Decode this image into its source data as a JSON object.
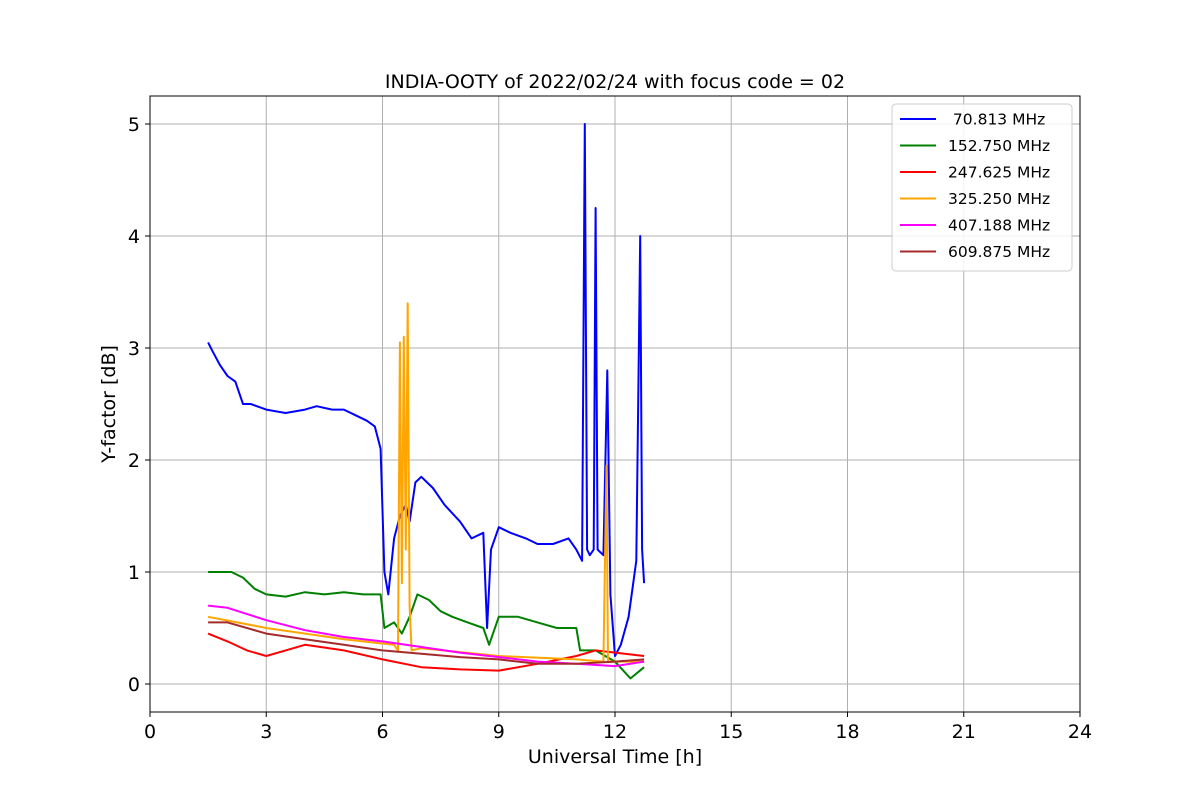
{
  "chart_data": {
    "type": "line",
    "title": "INDIA-OOTY of 2022/02/24 with focus code = 02",
    "xlabel": "Universal Time [h]",
    "ylabel": "Y-factor [dB]",
    "xlim": [
      0,
      24
    ],
    "ylim": [
      -0.25,
      5.25
    ],
    "xticks": [
      0,
      3,
      6,
      9,
      12,
      15,
      18,
      21,
      24
    ],
    "xtick_labels": [
      "0",
      "3",
      "6",
      "9",
      "12",
      "15",
      "18",
      "21",
      "24"
    ],
    "yticks": [
      0,
      1,
      2,
      3,
      4,
      5
    ],
    "ytick_labels": [
      "0",
      "1",
      "2",
      "3",
      "4",
      "5"
    ],
    "grid": true,
    "legend_position": "top-right",
    "series": [
      {
        "name": " 70.813 MHz",
        "color": "#0000ff",
        "x": [
          1.5,
          1.6,
          1.8,
          2.0,
          2.2,
          2.4,
          2.6,
          3.0,
          3.5,
          4.0,
          4.3,
          4.7,
          5.0,
          5.3,
          5.6,
          5.8,
          5.95,
          6.05,
          6.15,
          6.3,
          6.45,
          6.6,
          6.7,
          6.85,
          7.0,
          7.3,
          7.6,
          8.0,
          8.3,
          8.6,
          8.7,
          8.8,
          9.0,
          9.3,
          9.7,
          10.0,
          10.4,
          10.8,
          11.0,
          11.15,
          11.22,
          11.28,
          11.35,
          11.45,
          11.5,
          11.55,
          11.7,
          11.8,
          11.88,
          12.0,
          12.15,
          12.35,
          12.55,
          12.65,
          12.7,
          12.75
        ],
        "y": [
          3.05,
          2.98,
          2.85,
          2.75,
          2.7,
          2.5,
          2.5,
          2.45,
          2.42,
          2.45,
          2.48,
          2.45,
          2.45,
          2.4,
          2.35,
          2.3,
          2.1,
          1.0,
          0.8,
          1.3,
          1.5,
          1.6,
          1.45,
          1.8,
          1.85,
          1.75,
          1.6,
          1.45,
          1.3,
          1.35,
          0.5,
          1.2,
          1.4,
          1.35,
          1.3,
          1.25,
          1.25,
          1.3,
          1.2,
          1.1,
          5.0,
          1.2,
          1.15,
          1.2,
          4.25,
          1.2,
          1.15,
          2.8,
          0.8,
          0.25,
          0.35,
          0.6,
          1.1,
          4.0,
          1.2,
          0.9
        ]
      },
      {
        "name": "152.750 MHz",
        "color": "#008000",
        "x": [
          1.5,
          1.8,
          2.1,
          2.4,
          2.7,
          3.0,
          3.5,
          4.0,
          4.5,
          5.0,
          5.5,
          5.95,
          6.05,
          6.3,
          6.5,
          6.7,
          6.9,
          7.2,
          7.5,
          7.8,
          8.2,
          8.6,
          8.75,
          9.0,
          9.5,
          10.0,
          10.5,
          11.0,
          11.1,
          11.5,
          12.0,
          12.4,
          12.75
        ],
        "y": [
          1.0,
          1.0,
          1.0,
          0.95,
          0.85,
          0.8,
          0.78,
          0.82,
          0.8,
          0.82,
          0.8,
          0.8,
          0.5,
          0.55,
          0.45,
          0.6,
          0.8,
          0.75,
          0.65,
          0.6,
          0.55,
          0.5,
          0.35,
          0.6,
          0.6,
          0.55,
          0.5,
          0.5,
          0.3,
          0.3,
          0.2,
          0.05,
          0.15
        ]
      },
      {
        "name": "247.625 MHz",
        "color": "#ff0000",
        "x": [
          1.5,
          2.0,
          2.5,
          3.0,
          3.5,
          4.0,
          5.0,
          6.0,
          7.0,
          8.0,
          9.0,
          10.0,
          11.0,
          11.5,
          12.0,
          12.5,
          12.75
        ],
        "y": [
          0.45,
          0.38,
          0.3,
          0.25,
          0.3,
          0.35,
          0.3,
          0.22,
          0.15,
          0.13,
          0.12,
          0.18,
          0.25,
          0.3,
          0.28,
          0.26,
          0.25
        ]
      },
      {
        "name": "325.250 MHz",
        "color": "#ffa500",
        "x": [
          1.5,
          3.0,
          5.0,
          6.3,
          6.4,
          6.45,
          6.5,
          6.55,
          6.6,
          6.65,
          6.7,
          6.75,
          7.0,
          9.0,
          11.0,
          11.7,
          11.78,
          11.82,
          11.9,
          12.75
        ],
        "y": [
          0.6,
          0.5,
          0.4,
          0.35,
          0.3,
          3.05,
          0.9,
          3.1,
          1.2,
          3.4,
          0.7,
          0.3,
          0.32,
          0.25,
          0.22,
          0.2,
          1.95,
          0.2,
          0.2,
          0.2
        ]
      },
      {
        "name": "407.188 MHz",
        "color": "#ff00ff",
        "x": [
          1.5,
          2.0,
          3.0,
          4.0,
          5.0,
          6.0,
          7.0,
          8.0,
          9.0,
          10.0,
          11.0,
          12.0,
          12.75
        ],
        "y": [
          0.7,
          0.68,
          0.57,
          0.48,
          0.42,
          0.38,
          0.33,
          0.28,
          0.24,
          0.2,
          0.18,
          0.16,
          0.2
        ]
      },
      {
        "name": "609.875 MHz",
        "color": "#a52a2a",
        "x": [
          1.5,
          2.0,
          3.0,
          4.0,
          5.0,
          6.0,
          7.0,
          8.0,
          9.0,
          10.0,
          11.0,
          12.0,
          12.75
        ],
        "y": [
          0.55,
          0.55,
          0.45,
          0.4,
          0.35,
          0.3,
          0.27,
          0.24,
          0.22,
          0.18,
          0.18,
          0.2,
          0.22
        ]
      }
    ]
  }
}
